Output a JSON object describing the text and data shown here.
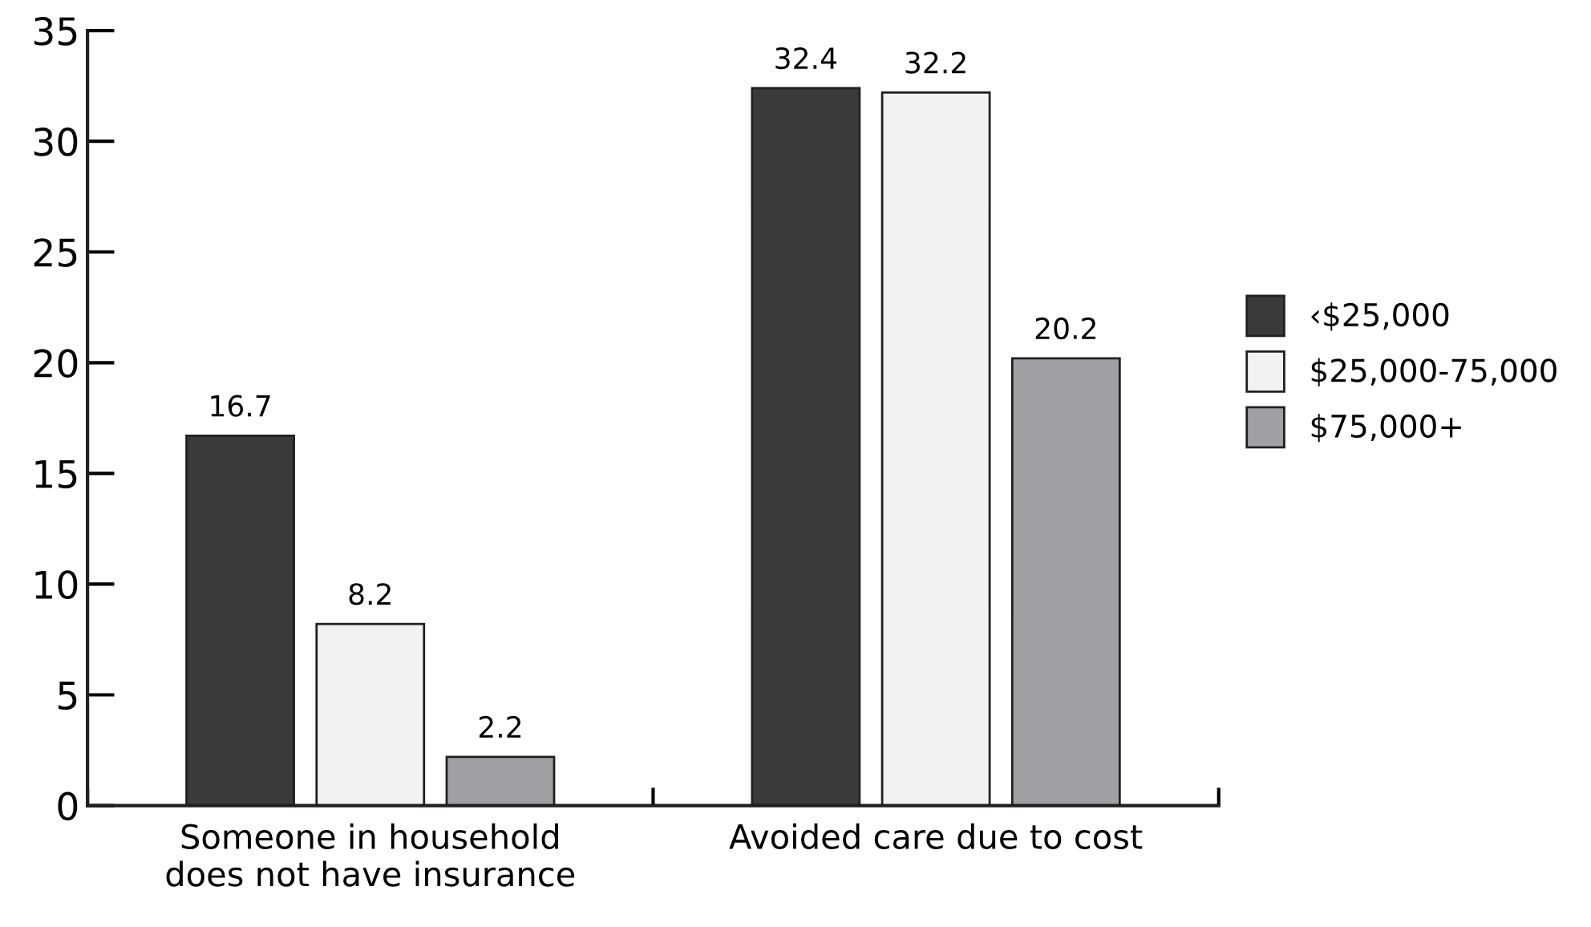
{
  "chart_data": {
    "type": "bar",
    "categories": [
      "Someone in household\ndoes not have insurance",
      "Avoided care due to cost"
    ],
    "series": [
      {
        "name": "‹$25,000",
        "color": "#3a3a3c",
        "values": [
          16.7,
          32.4
        ]
      },
      {
        "name": "$25,000-75,000",
        "color": "#f2f2f2",
        "values": [
          8.2,
          32.2
        ]
      },
      {
        "name": "$75,000+",
        "color": "#a0a0a4",
        "values": [
          2.2,
          20.2
        ]
      }
    ],
    "ylim": [
      0,
      35
    ],
    "yticks": [
      0,
      5,
      10,
      15,
      20,
      25,
      30,
      35
    ],
    "data_labels": true,
    "grid": false,
    "legend": "right"
  }
}
